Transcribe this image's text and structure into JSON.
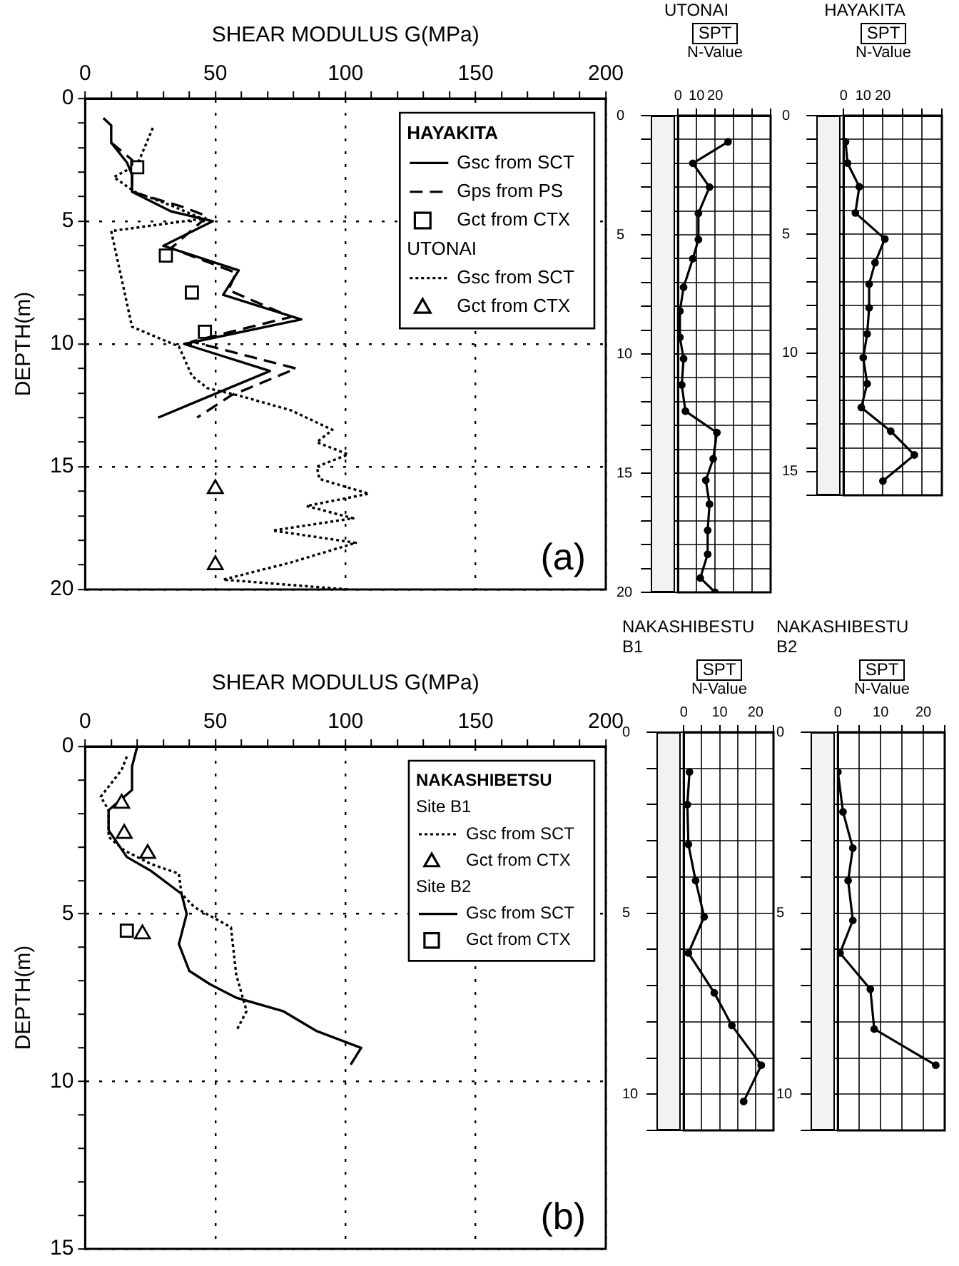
{
  "chart_data": [
    {
      "type": "line",
      "xlabel": "SHEAR MODULUS G(MPa)",
      "ylabel": "DEPTH(m)",
      "legend": "top right",
      "legend_title": "HAYAKITA",
      "annotations": [
        "UTONAI",
        "(a)"
      ],
      "grid": true,
      "xlim": [
        0,
        200
      ],
      "xticks": [
        0,
        {
          "value": 10,
          "label": null
        },
        {
          "value": 20,
          "label": null
        },
        {
          "value": 30,
          "label": null
        },
        {
          "value": 40,
          "label": null
        },
        50,
        {
          "value": 60,
          "label": null
        },
        {
          "value": 70,
          "label": null
        },
        {
          "value": 80,
          "label": null
        },
        {
          "value": 90,
          "label": null
        },
        100,
        {
          "value": 110,
          "label": null
        },
        {
          "value": 120,
          "label": null
        },
        {
          "value": 130,
          "label": null
        },
        {
          "value": 140,
          "label": null
        },
        150,
        {
          "value": 160,
          "label": null
        },
        {
          "value": 170,
          "label": null
        },
        {
          "value": 180,
          "label": null
        },
        {
          "value": 190,
          "label": null
        },
        200
      ],
      "ylim": [
        20,
        0
      ],
      "yticks": [
        0,
        {
          "value": 1,
          "label": null
        },
        {
          "value": 2,
          "label": null
        },
        {
          "value": 3,
          "label": null
        },
        {
          "value": 4,
          "label": null
        },
        5,
        {
          "value": 6,
          "label": null
        },
        {
          "value": 7,
          "label": null
        },
        {
          "value": 8,
          "label": null
        },
        {
          "value": 9,
          "label": null
        },
        10,
        {
          "value": 11,
          "label": null
        },
        {
          "value": 12,
          "label": null
        },
        {
          "value": 13,
          "label": null
        },
        {
          "value": 14,
          "label": null
        },
        15,
        {
          "value": 16,
          "label": null
        },
        {
          "value": 17,
          "label": null
        },
        {
          "value": 18,
          "label": null
        },
        {
          "value": 19,
          "label": null
        },
        20
      ],
      "series": [
        {
          "name": "Gsc from SCT",
          "type": "line",
          "color": "#000000",
          "line_style": "solid",
          "marker": "none",
          "x": [
            7,
            10,
            10,
            16,
            18,
            18,
            33,
            49,
            30,
            59,
            53,
            83,
            38,
            71,
            28
          ],
          "values": [
            0.8,
            1.1,
            1.8,
            2.6,
            3.1,
            3.8,
            4.6,
            5.0,
            6.0,
            7.0,
            8.0,
            9.0,
            10.0,
            11.1,
            13.0
          ]
        },
        {
          "name": "Gps from PS",
          "type": "line",
          "color": "#000000",
          "line_style": "dashed",
          "marker": "none",
          "x": [
            10,
            18,
            18,
            37,
            47,
            33,
            58,
            55,
            79,
            41,
            81,
            56,
            43
          ],
          "values": [
            1.8,
            2.5,
            3.8,
            4.4,
            4.8,
            6.1,
            7.1,
            7.8,
            8.9,
            9.9,
            11.0,
            12.1,
            13.0
          ]
        },
        {
          "name": "Gct from CTX",
          "type": "scatter",
          "color": "#000000",
          "marker": "square",
          "x": [
            20,
            31,
            41,
            46
          ],
          "values": [
            2.8,
            6.4,
            7.9,
            9.5
          ]
        },
        {
          "name": "Gsc from SCT",
          "type": "line",
          "color": "#000000",
          "line_style": "dotted",
          "marker": "none",
          "x": [
            26,
            20,
            11,
            19,
            34,
            45,
            10,
            18,
            36,
            41,
            47,
            59,
            79,
            95,
            89,
            101,
            89,
            90,
            109,
            85,
            103,
            72,
            104,
            79,
            53,
            101
          ],
          "values": [
            1.2,
            2.7,
            3.2,
            3.8,
            4.4,
            4.9,
            5.4,
            9.3,
            10.1,
            11.3,
            11.8,
            12.1,
            12.7,
            13.5,
            14.0,
            14.5,
            15.0,
            15.5,
            16.1,
            16.6,
            17.1,
            17.6,
            18.1,
            18.9,
            19.6,
            20.0
          ]
        },
        {
          "name": "Gct from CTX",
          "type": "scatter",
          "color": "#000000",
          "marker": "triangle",
          "x": [
            50,
            50
          ],
          "values": [
            15.9,
            19.0
          ]
        }
      ]
    },
    {
      "type": "line",
      "title": "UTONAI",
      "subtitle": "SPT",
      "xlabel": "N-Value",
      "grid": true,
      "xlim": [
        0,
        50
      ],
      "xticks": [
        0,
        10,
        20,
        {
          "value": 30,
          "label": null
        },
        {
          "value": 40,
          "label": null
        },
        {
          "value": 50,
          "label": null
        }
      ],
      "ylim": [
        20,
        0
      ],
      "yticks": [
        0,
        {
          "value": 1,
          "label": null
        },
        {
          "value": 2,
          "label": null
        },
        {
          "value": 3,
          "label": null
        },
        {
          "value": 4,
          "label": null
        },
        5,
        {
          "value": 6,
          "label": null
        },
        {
          "value": 7,
          "label": null
        },
        {
          "value": 8,
          "label": null
        },
        {
          "value": 9,
          "label": null
        },
        10,
        {
          "value": 11,
          "label": null
        },
        {
          "value": 12,
          "label": null
        },
        {
          "value": 13,
          "label": null
        },
        {
          "value": 14,
          "label": null
        },
        15,
        {
          "value": 16,
          "label": null
        },
        {
          "value": 17,
          "label": null
        },
        {
          "value": 18,
          "label": null
        },
        {
          "value": 19,
          "label": null
        },
        20
      ],
      "series": [
        {
          "type": "line",
          "color": "#000000",
          "line_style": "solid",
          "marker": "circle",
          "x": [
            27,
            8,
            17,
            11,
            11,
            8,
            3,
            1,
            1,
            3,
            2,
            4,
            21,
            19,
            15,
            17,
            16,
            16,
            12,
            20
          ],
          "values": [
            1.1,
            2.0,
            3.0,
            4.1,
            5.2,
            6.0,
            7.2,
            8.2,
            9.3,
            10.2,
            11.3,
            12.4,
            13.3,
            14.4,
            15.3,
            16.3,
            17.4,
            18.4,
            19.4,
            20.0
          ]
        }
      ]
    },
    {
      "type": "line",
      "title": "HAYAKITA",
      "subtitle": "SPT",
      "xlabel": "N-Value",
      "grid": true,
      "xlim": [
        0,
        50
      ],
      "xticks": [
        0,
        10,
        20,
        {
          "value": 30,
          "label": null
        },
        {
          "value": 40,
          "label": null
        },
        {
          "value": 50,
          "label": null
        }
      ],
      "ylim": [
        16,
        0
      ],
      "yticks": [
        0,
        {
          "value": 1,
          "label": null
        },
        {
          "value": 2,
          "label": null
        },
        {
          "value": 3,
          "label": null
        },
        {
          "value": 4,
          "label": null
        },
        5,
        {
          "value": 6,
          "label": null
        },
        {
          "value": 7,
          "label": null
        },
        {
          "value": 8,
          "label": null
        },
        {
          "value": 9,
          "label": null
        },
        10,
        {
          "value": 11,
          "label": null
        },
        {
          "value": 12,
          "label": null
        },
        {
          "value": 13,
          "label": null
        },
        {
          "value": 14,
          "label": null
        },
        15,
        {
          "value": 16,
          "label": null
        }
      ],
      "series": [
        {
          "type": "line",
          "color": "#000000",
          "line_style": "solid",
          "marker": "circle",
          "x": [
            1,
            2,
            8,
            6,
            21,
            16,
            13,
            13,
            12,
            10,
            12,
            9,
            24,
            36,
            20
          ],
          "values": [
            1.1,
            2.0,
            3.0,
            4.1,
            5.2,
            6.2,
            7.1,
            8.1,
            9.2,
            10.2,
            11.3,
            12.3,
            13.3,
            14.3,
            15.4
          ]
        }
      ]
    },
    {
      "type": "line",
      "xlabel": "SHEAR MODULUS G(MPa)",
      "ylabel": "DEPTH(m)",
      "legend": "top right",
      "legend_title": "NAKASHIBETSU",
      "annotations": [
        "Site B1",
        "Site B2",
        "(b)"
      ],
      "grid": true,
      "xlim": [
        0,
        200
      ],
      "xticks": [
        0,
        {
          "value": 10,
          "label": null
        },
        {
          "value": 20,
          "label": null
        },
        {
          "value": 30,
          "label": null
        },
        {
          "value": 40,
          "label": null
        },
        50,
        {
          "value": 60,
          "label": null
        },
        {
          "value": 70,
          "label": null
        },
        {
          "value": 80,
          "label": null
        },
        {
          "value": 90,
          "label": null
        },
        100,
        {
          "value": 110,
          "label": null
        },
        {
          "value": 120,
          "label": null
        },
        {
          "value": 130,
          "label": null
        },
        {
          "value": 140,
          "label": null
        },
        150,
        {
          "value": 160,
          "label": null
        },
        {
          "value": 170,
          "label": null
        },
        {
          "value": 180,
          "label": null
        },
        {
          "value": 190,
          "label": null
        },
        200
      ],
      "ylim": [
        15,
        0
      ],
      "yticks": [
        0,
        {
          "value": 1,
          "label": null
        },
        {
          "value": 2,
          "label": null
        },
        {
          "value": 3,
          "label": null
        },
        {
          "value": 4,
          "label": null
        },
        5,
        {
          "value": 6,
          "label": null
        },
        {
          "value": 7,
          "label": null
        },
        {
          "value": 8,
          "label": null
        },
        {
          "value": 9,
          "label": null
        },
        10,
        {
          "value": 11,
          "label": null
        },
        {
          "value": 12,
          "label": null
        },
        {
          "value": 13,
          "label": null
        },
        {
          "value": 14,
          "label": null
        },
        15
      ],
      "series": [
        {
          "name": "Gsc from SCT",
          "type": "line",
          "color": "#000000",
          "line_style": "dotted",
          "marker": "none",
          "x": [
            16,
            14,
            6,
            9,
            9,
            15,
            25,
            36,
            37,
            42,
            56,
            58,
            62,
            58
          ],
          "values": [
            0.3,
            0.7,
            1.5,
            1.9,
            2.7,
            3.1,
            3.5,
            3.8,
            4.4,
            4.8,
            5.4,
            6.8,
            7.9,
            8.5
          ]
        },
        {
          "name": "Gct from CTX",
          "type": "scatter",
          "color": "#000000",
          "marker": "triangle",
          "x": [
            14,
            15,
            24,
            22
          ],
          "values": [
            1.7,
            2.6,
            3.2,
            5.6
          ]
        },
        {
          "name": "Gsc from SCT",
          "type": "line",
          "color": "#000000",
          "line_style": "solid",
          "marker": "none",
          "x": [
            20,
            18,
            18,
            9,
            9,
            16,
            25,
            37,
            39,
            36,
            40,
            48,
            58,
            76,
            89,
            106,
            102
          ],
          "values": [
            0,
            0.6,
            1.3,
            1.9,
            2.5,
            3.3,
            3.7,
            4.4,
            5.0,
            5.9,
            6.7,
            7.1,
            7.5,
            7.9,
            8.5,
            9.0,
            9.5
          ]
        },
        {
          "name": "Gct from CTX",
          "type": "scatter",
          "color": "#000000",
          "marker": "square",
          "x": [
            16
          ],
          "values": [
            5.5
          ]
        }
      ]
    },
    {
      "type": "line",
      "title": "NAKASHIBESTU B1",
      "subtitle": "SPT",
      "xlabel": "N-Value",
      "grid": true,
      "xlim": [
        0,
        25
      ],
      "xticks": [
        0,
        {
          "value": 5,
          "label": null
        },
        10,
        {
          "value": 15,
          "label": null
        },
        20,
        {
          "value": 25,
          "label": null
        }
      ],
      "ylim": [
        11,
        0
      ],
      "yticks": [
        0,
        {
          "value": 1,
          "label": null
        },
        {
          "value": 2,
          "label": null
        },
        {
          "value": 3,
          "label": null
        },
        {
          "value": 4,
          "label": null
        },
        5,
        {
          "value": 6,
          "label": null
        },
        {
          "value": 7,
          "label": null
        },
        {
          "value": 8,
          "label": null
        },
        {
          "value": 9,
          "label": null
        },
        10,
        {
          "value": 11,
          "label": null
        }
      ],
      "series": [
        {
          "type": "line",
          "color": "#000000",
          "line_style": "solid",
          "marker": "circle",
          "x": [
            1.6,
            1.0,
            1.3,
            3.3,
            5.7,
            1.3,
            8.5,
            13.4,
            21.6,
            16.7
          ],
          "values": [
            1.1,
            2.0,
            3.1,
            4.1,
            5.1,
            6.1,
            7.2,
            8.1,
            9.2,
            10.2
          ]
        }
      ]
    },
    {
      "type": "line",
      "title": "NAKASHIBESTU B2",
      "subtitle": "SPT",
      "xlabel": "N-Value",
      "grid": true,
      "xlim": [
        0,
        25
      ],
      "xticks": [
        0,
        {
          "value": 5,
          "label": null
        },
        10,
        {
          "value": 15,
          "label": null
        },
        20,
        {
          "value": 25,
          "label": null
        }
      ],
      "ylim": [
        11,
        0
      ],
      "yticks": [
        0,
        {
          "value": 1,
          "label": null
        },
        {
          "value": 2,
          "label": null
        },
        {
          "value": 3,
          "label": null
        },
        {
          "value": 4,
          "label": null
        },
        5,
        {
          "value": 6,
          "label": null
        },
        {
          "value": 7,
          "label": null
        },
        {
          "value": 8,
          "label": null
        },
        {
          "value": 9,
          "label": null
        },
        10,
        {
          "value": 11,
          "label": null
        }
      ],
      "series": [
        {
          "type": "line",
          "color": "#000000",
          "line_style": "solid",
          "marker": "circle",
          "x": [
            0,
            1.2,
            3.5,
            2.4,
            3.5,
            0.5,
            7.6,
            8.5,
            22.9
          ],
          "values": [
            1.1,
            2.2,
            3.2,
            4.1,
            5.2,
            6.1,
            7.1,
            8.2,
            9.2
          ]
        }
      ]
    }
  ]
}
